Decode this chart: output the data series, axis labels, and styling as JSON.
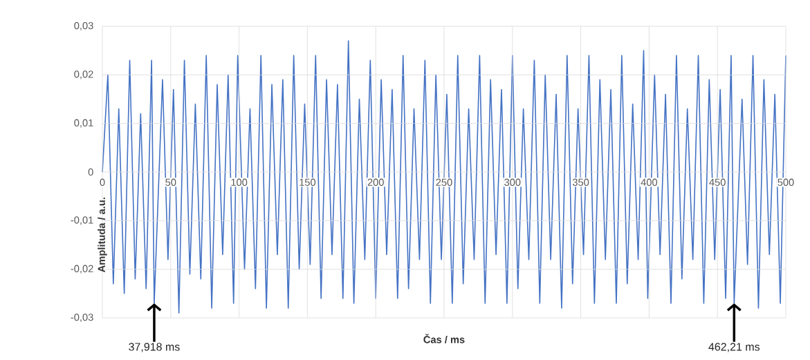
{
  "chart_data": {
    "type": "line",
    "xlabel": "Čas / ms",
    "ylabel": "Amplituda / a.u.",
    "xlim": [
      0,
      500
    ],
    "ylim": [
      -0.03,
      0.03
    ],
    "xticks": [
      0,
      50,
      100,
      150,
      200,
      250,
      300,
      350,
      400,
      450,
      500
    ],
    "yticks": [
      {
        "value": -0.03,
        "label": "-0,03"
      },
      {
        "value": -0.02,
        "label": "-0,02"
      },
      {
        "value": -0.01,
        "label": "-0,01"
      },
      {
        "value": 0,
        "label": "0"
      },
      {
        "value": 0.01,
        "label": "0,01"
      },
      {
        "value": 0.02,
        "label": "0,02"
      },
      {
        "value": 0.03,
        "label": "0,03"
      }
    ],
    "grid": true,
    "annotations": [
      {
        "text": "37,918 ms",
        "x": 37.918,
        "y": -0.027
      },
      {
        "text": "462,21 ms",
        "x": 462.21,
        "y": -0.027
      }
    ],
    "x": [
      0,
      4,
      8,
      12,
      16,
      20,
      24,
      28,
      32,
      36,
      37.918,
      44,
      48,
      52,
      56,
      60,
      64,
      68,
      72,
      76,
      80,
      84,
      88,
      92,
      96,
      99,
      104,
      108,
      112,
      116,
      120,
      124,
      128,
      132,
      136,
      140,
      144,
      148,
      152,
      156,
      160,
      164,
      168,
      172,
      176,
      180,
      184,
      188,
      192,
      196,
      200,
      204,
      208,
      212,
      216,
      220,
      224,
      228,
      232,
      236,
      240,
      244,
      248,
      252,
      256,
      260,
      264,
      268,
      272,
      276,
      280,
      284,
      288,
      292,
      296,
      300,
      304,
      308,
      312,
      316,
      320,
      324,
      328,
      332,
      336,
      340,
      344,
      348,
      352,
      356,
      360,
      364,
      368,
      372,
      376,
      380,
      384,
      388,
      392,
      396,
      399,
      404,
      408,
      412,
      416,
      420,
      424,
      428,
      432,
      436,
      440,
      444,
      448,
      452,
      456,
      460,
      462.21,
      468,
      472,
      476,
      480,
      484,
      488,
      492,
      496,
      500
    ],
    "series": [
      {
        "color": "#4472c4",
        "values": [
          0,
          0.02,
          -0.023,
          0.013,
          -0.025,
          0.023,
          -0.022,
          0.012,
          -0.024,
          0.023,
          -0.027,
          0.019,
          -0.018,
          0.017,
          -0.029,
          0.023,
          -0.021,
          0.014,
          -0.022,
          0.024,
          -0.028,
          0.018,
          -0.017,
          0.02,
          -0.027,
          0.024,
          -0.02,
          0.013,
          -0.024,
          0.024,
          -0.028,
          0.018,
          -0.017,
          0.019,
          -0.028,
          0.024,
          -0.02,
          0.014,
          -0.019,
          0.024,
          -0.026,
          0.019,
          -0.017,
          0.018,
          -0.026,
          0.027,
          -0.027,
          0.015,
          -0.018,
          0.023,
          -0.026,
          0.019,
          -0.017,
          0.017,
          -0.026,
          0.024,
          -0.024,
          0.013,
          -0.018,
          0.023,
          -0.027,
          0.02,
          -0.018,
          0.016,
          -0.027,
          0.024,
          -0.023,
          0.013,
          -0.018,
          0.024,
          -0.027,
          0.019,
          -0.017,
          0.017,
          -0.027,
          0.024,
          -0.024,
          0.013,
          -0.018,
          0.023,
          -0.027,
          0.02,
          -0.018,
          0.016,
          -0.028,
          0.024,
          -0.023,
          0.013,
          -0.017,
          0.024,
          -0.027,
          0.019,
          -0.018,
          0.017,
          -0.027,
          0.024,
          -0.023,
          0.014,
          -0.018,
          0.025,
          -0.026,
          0.02,
          -0.017,
          0.016,
          -0.027,
          0.024,
          -0.022,
          0.013,
          -0.018,
          0.024,
          -0.027,
          0.019,
          -0.018,
          0.017,
          -0.026,
          0.024,
          -0.027,
          0.015,
          -0.019,
          0.024,
          -0.028,
          0.019,
          -0.017,
          0.016,
          -0.027,
          0.024
        ]
      }
    ]
  }
}
